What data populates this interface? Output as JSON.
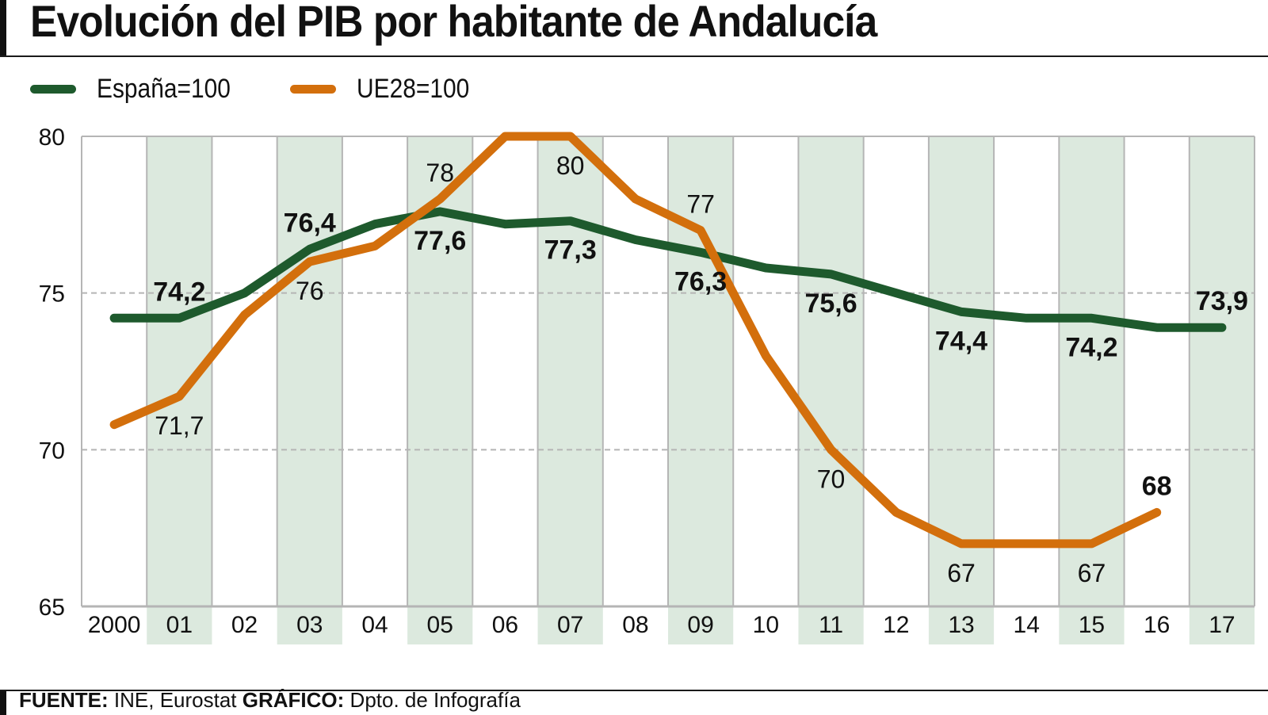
{
  "header": {
    "title": "Evolución del PIB por habitante de Andalucía"
  },
  "legend": [
    {
      "label": "España=100",
      "color": "#1e5a2d"
    },
    {
      "label": "UE28=100",
      "color": "#d36f0c"
    }
  ],
  "footer": {
    "source_label": "FUENTE:",
    "source_value": "INE, Eurostat",
    "graphic_label": "GRÁFICO:",
    "graphic_value": "Dpto. de Infografía"
  },
  "colors": {
    "band": "#dce9de",
    "grid": "#b5b5b5",
    "spain": "#1e5a2d",
    "eu": "#d36f0c"
  },
  "chart_data": {
    "type": "line",
    "title": "Evolución del PIB por habitante de Andalucía",
    "xlabel": "",
    "ylabel": "",
    "categories": [
      "2000",
      "01",
      "02",
      "03",
      "04",
      "05",
      "06",
      "07",
      "08",
      "09",
      "10",
      "11",
      "12",
      "13",
      "14",
      "15",
      "16",
      "17"
    ],
    "ylim": [
      65,
      80
    ],
    "yticks": [
      65,
      70,
      75,
      80
    ],
    "grid": "horizontal dashed at 70 and 75; vertical column separators",
    "legend_position": "top-left",
    "series": [
      {
        "name": "España=100",
        "values": [
          74.2,
          74.2,
          75.0,
          76.4,
          77.2,
          77.6,
          77.2,
          77.3,
          76.7,
          76.3,
          75.8,
          75.6,
          75.0,
          74.4,
          74.2,
          74.2,
          73.9,
          73.9
        ],
        "labels": [
          {
            "index": 1,
            "text": "74,2",
            "pos": "above"
          },
          {
            "index": 3,
            "text": "76,4",
            "pos": "above"
          },
          {
            "index": 5,
            "text": "77,6",
            "pos": "below"
          },
          {
            "index": 7,
            "text": "77,3",
            "pos": "below"
          },
          {
            "index": 9,
            "text": "76,3",
            "pos": "below"
          },
          {
            "index": 11,
            "text": "75,6",
            "pos": "below"
          },
          {
            "index": 13,
            "text": "74,4",
            "pos": "below"
          },
          {
            "index": 15,
            "text": "74,2",
            "pos": "below"
          },
          {
            "index": 17,
            "text": "73,9",
            "pos": "above"
          }
        ]
      },
      {
        "name": "UE28=100",
        "values": [
          70.8,
          71.7,
          74.3,
          76.0,
          76.5,
          78.0,
          80.0,
          80.0,
          78.0,
          77.0,
          73.0,
          70.0,
          68.0,
          67.0,
          67.0,
          67.0,
          68.0,
          null
        ],
        "labels": [
          {
            "index": 1,
            "text": "71,7",
            "pos": "below"
          },
          {
            "index": 3,
            "text": "76",
            "pos": "below"
          },
          {
            "index": 5,
            "text": "78",
            "pos": "above"
          },
          {
            "index": 7,
            "text": "80",
            "pos": "below"
          },
          {
            "index": 9,
            "text": "77",
            "pos": "above"
          },
          {
            "index": 11,
            "text": "70",
            "pos": "below"
          },
          {
            "index": 13,
            "text": "67",
            "pos": "below"
          },
          {
            "index": 15,
            "text": "67",
            "pos": "below"
          },
          {
            "index": 16,
            "text": "68",
            "pos": "above",
            "bold": true
          }
        ]
      }
    ]
  }
}
